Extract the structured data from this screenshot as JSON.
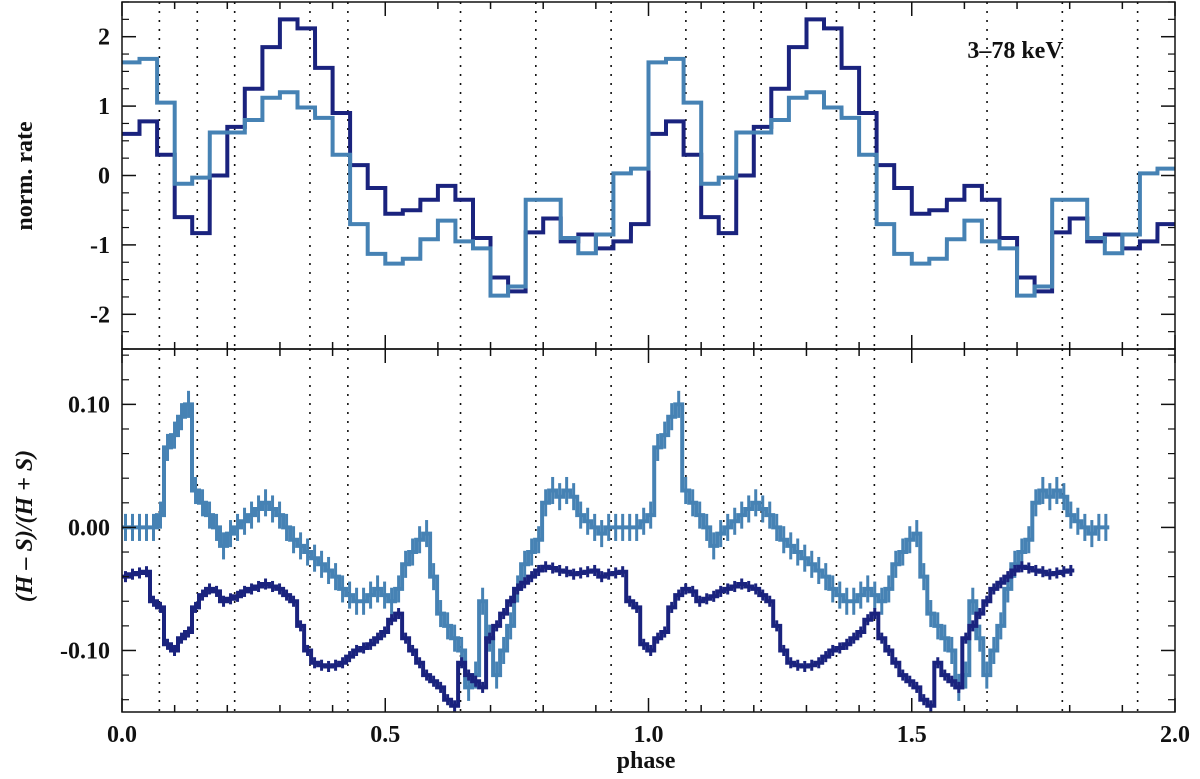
{
  "chart_data": [
    {
      "type": "line",
      "step": true,
      "panel": "top",
      "annotation": "3–78 keV",
      "ylabel": "norm. rate",
      "xlim": [
        0.0,
        2.0
      ],
      "ylim": [
        -2.5,
        2.5
      ],
      "yticks": [
        -2,
        -1,
        0,
        1,
        2
      ],
      "ytick_labels": [
        "-2",
        "-1",
        "0",
        "1",
        "2"
      ],
      "vlines": [
        0.071,
        0.143,
        0.214,
        0.357,
        0.429,
        0.643,
        0.786,
        0.929,
        1.071,
        1.143,
        1.214,
        1.357,
        1.429,
        1.643,
        1.786,
        1.929
      ],
      "series": [
        {
          "color": "#1a237e",
          "x": [
            0.0,
            0.0333,
            0.0667,
            0.1,
            0.1333,
            0.1667,
            0.2,
            0.2333,
            0.2667,
            0.3,
            0.3333,
            0.3667,
            0.4,
            0.4333,
            0.4667,
            0.5,
            0.5333,
            0.5667,
            0.6,
            0.6333,
            0.6667,
            0.7,
            0.7333,
            0.7667,
            0.8,
            0.8333,
            0.8667,
            0.9,
            0.9333,
            0.9667
          ],
          "values": [
            0.6,
            0.78,
            0.3,
            -0.6,
            -0.83,
            0.0,
            0.7,
            1.25,
            1.85,
            2.25,
            2.12,
            1.55,
            0.9,
            0.15,
            -0.18,
            -0.55,
            -0.5,
            -0.35,
            -0.15,
            -0.35,
            -0.9,
            -1.47,
            -1.67,
            -0.82,
            -0.62,
            -0.95,
            -0.85,
            -1.05,
            -0.95,
            -0.7
          ]
        },
        {
          "color": "#4682b4",
          "x": [
            0.0,
            0.0333,
            0.0667,
            0.1,
            0.1333,
            0.1667,
            0.2,
            0.2333,
            0.2667,
            0.3,
            0.3333,
            0.3667,
            0.4,
            0.4333,
            0.4667,
            0.5,
            0.5333,
            0.5667,
            0.6,
            0.6333,
            0.6667,
            0.7,
            0.7333,
            0.7667,
            0.8,
            0.8333,
            0.8667,
            0.9,
            0.9333,
            0.9667
          ],
          "values": [
            1.63,
            1.68,
            1.05,
            -0.12,
            -0.03,
            0.62,
            0.62,
            0.8,
            1.12,
            1.2,
            0.98,
            0.83,
            0.3,
            -0.7,
            -1.13,
            -1.27,
            -1.2,
            -0.92,
            -0.65,
            -0.95,
            -1.05,
            -1.73,
            -1.6,
            -0.35,
            -0.35,
            -0.9,
            -1.12,
            -0.85,
            0.03,
            0.1
          ]
        }
      ]
    },
    {
      "type": "line",
      "step": true,
      "errorbars": true,
      "panel": "bottom",
      "xlabel": "phase",
      "ylabel": "(H – S)/(H + S)",
      "xlim": [
        0.0,
        2.0
      ],
      "ylim": [
        -0.15,
        0.145
      ],
      "xticks": [
        0.0,
        0.5,
        1.0,
        1.5,
        2.0
      ],
      "xtick_labels": [
        "0.0",
        "0.5",
        "1.0",
        "1.5",
        "2.0"
      ],
      "yticks": [
        -0.1,
        0.0,
        0.1
      ],
      "ytick_labels": [
        "-0.10",
        "0.00",
        "0.10"
      ],
      "vlines": [
        0.071,
        0.143,
        0.214,
        0.357,
        0.429,
        0.643,
        0.786,
        0.929,
        1.071,
        1.143,
        1.214,
        1.357,
        1.429,
        1.643,
        1.786,
        1.929
      ],
      "series": [
        {
          "color": "#4682b4",
          "x_start": 0.0,
          "x_step": 0.0133,
          "values": [
            0.0,
            0.0,
            0.0,
            0.0,
            0.0,
            0.01,
            0.065,
            0.075,
            0.09,
            0.1,
            0.03,
            0.02,
            0.01,
            0.0,
            -0.015,
            -0.005,
            0.0,
            0.005,
            0.01,
            0.015,
            0.02,
            0.015,
            0.01,
            0.0,
            -0.01,
            -0.015,
            -0.02,
            -0.025,
            -0.03,
            -0.035,
            -0.04,
            -0.05,
            -0.055,
            -0.06,
            -0.06,
            -0.055,
            -0.05,
            -0.055,
            -0.06,
            -0.05,
            -0.03,
            -0.02,
            -0.01,
            -0.005,
            -0.04,
            -0.07,
            -0.08,
            -0.09,
            -0.1,
            -0.13,
            -0.12,
            -0.06,
            -0.09,
            -0.12,
            -0.1,
            -0.08,
            -0.05,
            -0.03,
            -0.02,
            -0.01,
            0.02,
            0.03,
            0.025,
            0.03,
            0.025,
            0.01,
            0.005,
            0.0,
            -0.005,
            0.0,
            0.0,
            0.0,
            0.0,
            0.0,
            0.005,
            0.01,
            0.065,
            0.075,
            0.09,
            0.1,
            0.03,
            0.02,
            0.01,
            0.0,
            -0.015,
            -0.005,
            0.0,
            0.005,
            0.01,
            0.015,
            0.02,
            0.015,
            0.01,
            0.0,
            -0.01,
            -0.015,
            -0.02,
            -0.025,
            -0.03,
            -0.035,
            -0.04,
            -0.05,
            -0.055,
            -0.06,
            -0.06,
            -0.055,
            -0.05,
            -0.055,
            -0.06,
            -0.05,
            -0.03,
            -0.02,
            -0.01,
            -0.005,
            -0.04,
            -0.07,
            -0.08,
            -0.09,
            -0.1,
            -0.13,
            -0.12,
            -0.06,
            -0.09,
            -0.12,
            -0.1,
            -0.08,
            -0.05,
            -0.03,
            -0.02,
            -0.01,
            0.02,
            0.03,
            0.025,
            0.03,
            0.025,
            0.01,
            0.005,
            0.0,
            -0.005,
            0.0,
            0.0
          ]
        },
        {
          "color": "#1a237e",
          "x_start": 0.0,
          "x_step": 0.0133,
          "values": [
            -0.04,
            -0.038,
            -0.037,
            -0.036,
            -0.06,
            -0.065,
            -0.095,
            -0.1,
            -0.09,
            -0.085,
            -0.065,
            -0.055,
            -0.05,
            -0.052,
            -0.06,
            -0.058,
            -0.056,
            -0.052,
            -0.05,
            -0.048,
            -0.046,
            -0.048,
            -0.05,
            -0.055,
            -0.06,
            -0.08,
            -0.1,
            -0.11,
            -0.112,
            -0.113,
            -0.112,
            -0.11,
            -0.105,
            -0.1,
            -0.098,
            -0.095,
            -0.09,
            -0.085,
            -0.075,
            -0.07,
            -0.09,
            -0.1,
            -0.11,
            -0.12,
            -0.125,
            -0.13,
            -0.14,
            -0.145,
            -0.11,
            -0.12,
            -0.125,
            -0.13,
            -0.09,
            -0.08,
            -0.07,
            -0.06,
            -0.05,
            -0.045,
            -0.04,
            -0.035,
            -0.032,
            -0.033,
            -0.035,
            -0.036,
            -0.038,
            -0.037,
            -0.036,
            -0.035,
            -0.04,
            -0.038,
            -0.037,
            -0.036,
            -0.06,
            -0.065,
            -0.095,
            -0.1,
            -0.09,
            -0.085,
            -0.065,
            -0.055,
            -0.05,
            -0.052,
            -0.06,
            -0.058,
            -0.056,
            -0.052,
            -0.05,
            -0.048,
            -0.046,
            -0.048,
            -0.05,
            -0.055,
            -0.06,
            -0.08,
            -0.1,
            -0.11,
            -0.112,
            -0.113,
            -0.112,
            -0.11,
            -0.105,
            -0.1,
            -0.098,
            -0.095,
            -0.09,
            -0.085,
            -0.075,
            -0.07,
            -0.09,
            -0.1,
            -0.11,
            -0.12,
            -0.125,
            -0.13,
            -0.14,
            -0.145,
            -0.11,
            -0.12,
            -0.125,
            -0.13,
            -0.09,
            -0.08,
            -0.07,
            -0.06,
            -0.05,
            -0.045,
            -0.04,
            -0.035,
            -0.032,
            -0.033,
            -0.035,
            -0.036,
            -0.038,
            -0.037,
            -0.036,
            -0.035
          ]
        }
      ]
    }
  ]
}
